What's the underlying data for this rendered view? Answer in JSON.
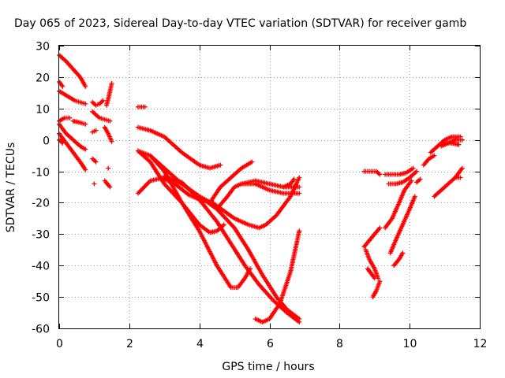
{
  "chart_data": {
    "type": "scatter",
    "title": "Day 065 of 2023, Sidereal Day-to-day VTEC variation (SDTVAR) for receiver gamb",
    "xlabel": "GPS time / hours",
    "ylabel": "SDTVAR / TECUs",
    "xlim": [
      0,
      12
    ],
    "ylim": [
      -60,
      30
    ],
    "xticks": [
      0,
      2,
      4,
      6,
      8,
      10,
      12
    ],
    "yticks": [
      -60,
      -50,
      -40,
      -30,
      -20,
      -10,
      0,
      10,
      20,
      30
    ],
    "grid": true,
    "marker": "+",
    "color": "#ff0000",
    "series": [
      {
        "values": [
          [
            0.0,
            27
          ],
          [
            0.2,
            25
          ],
          [
            0.4,
            22.5
          ],
          [
            0.6,
            20
          ],
          [
            0.75,
            17
          ]
        ]
      },
      {
        "values": [
          [
            0.0,
            18.5
          ],
          [
            0.1,
            17
          ]
        ]
      },
      {
        "values": [
          [
            0.0,
            15.5
          ],
          [
            0.15,
            14.5
          ],
          [
            0.3,
            13.5
          ],
          [
            0.45,
            12.5
          ],
          [
            0.6,
            12
          ],
          [
            0.75,
            11.5
          ]
        ]
      },
      {
        "values": [
          [
            0.0,
            6
          ],
          [
            0.15,
            7
          ],
          [
            0.3,
            7
          ]
        ]
      },
      {
        "values": [
          [
            0.0,
            5
          ],
          [
            0.2,
            2
          ],
          [
            0.4,
            0
          ],
          [
            0.6,
            -2
          ],
          [
            0.75,
            -3
          ]
        ]
      },
      {
        "values": [
          [
            0.0,
            2
          ],
          [
            0.2,
            -1
          ],
          [
            0.4,
            -4
          ],
          [
            0.6,
            -7
          ],
          [
            0.75,
            -9.5
          ]
        ]
      },
      {
        "values": [
          [
            0.4,
            6
          ],
          [
            0.6,
            5.5
          ],
          [
            0.75,
            5
          ]
        ]
      },
      {
        "values": [
          [
            0.0,
            0
          ],
          [
            0.1,
            -1
          ]
        ]
      },
      {
        "values": [
          [
            0.95,
            12
          ],
          [
            1.05,
            11
          ],
          [
            1.15,
            11.5
          ],
          [
            1.25,
            12.5
          ]
        ]
      },
      {
        "values": [
          [
            0.95,
            9
          ],
          [
            1.05,
            8
          ],
          [
            1.15,
            7
          ],
          [
            1.3,
            6.5
          ],
          [
            1.45,
            6
          ]
        ]
      },
      {
        "values": [
          [
            0.95,
            2.5
          ],
          [
            1.05,
            3
          ]
        ]
      },
      {
        "values": [
          [
            1.3,
            4
          ],
          [
            1.4,
            2
          ],
          [
            1.5,
            -0.5
          ]
        ]
      },
      {
        "values": [
          [
            0.95,
            -6
          ],
          [
            1.05,
            -7
          ]
        ]
      },
      {
        "values": [
          [
            1.4,
            -9
          ]
        ]
      },
      {
        "values": [
          [
            1.3,
            -13
          ],
          [
            1.45,
            -15
          ]
        ]
      },
      {
        "values": [
          [
            1.0,
            -14
          ]
        ]
      },
      {
        "values": [
          [
            1.35,
            11
          ],
          [
            1.4,
            13
          ],
          [
            1.45,
            15.5
          ],
          [
            1.5,
            18
          ]
        ]
      },
      {
        "values": [
          [
            2.25,
            10.5
          ],
          [
            2.45,
            10.5
          ]
        ]
      },
      {
        "values": [
          [
            2.25,
            4
          ],
          [
            2.6,
            3
          ],
          [
            3.0,
            1
          ],
          [
            3.5,
            -4
          ],
          [
            4.0,
            -8
          ],
          [
            4.3,
            -9
          ],
          [
            4.6,
            -8
          ]
        ]
      },
      {
        "values": [
          [
            2.25,
            -3.5
          ],
          [
            2.6,
            -5
          ],
          [
            3.0,
            -9
          ],
          [
            3.5,
            -14
          ],
          [
            4.0,
            -18
          ],
          [
            4.5,
            -21
          ],
          [
            5.0,
            -25
          ],
          [
            5.4,
            -27
          ],
          [
            5.7,
            -28
          ],
          [
            5.9,
            -27
          ],
          [
            6.2,
            -24
          ],
          [
            6.6,
            -18
          ],
          [
            6.85,
            -12
          ]
        ]
      },
      {
        "values": [
          [
            2.25,
            -3.5
          ],
          [
            2.6,
            -7
          ],
          [
            3.0,
            -14
          ],
          [
            3.5,
            -20
          ],
          [
            4.0,
            -27
          ],
          [
            4.3,
            -29.5
          ],
          [
            4.5,
            -29
          ],
          [
            4.7,
            -27
          ]
        ]
      },
      {
        "values": [
          [
            2.25,
            -17
          ],
          [
            2.6,
            -13
          ],
          [
            3.0,
            -12
          ],
          [
            3.5,
            -13.5
          ],
          [
            4.0,
            -19
          ],
          [
            4.5,
            -26
          ],
          [
            4.9,
            -33
          ],
          [
            5.3,
            -40
          ],
          [
            5.7,
            -46
          ],
          [
            6.1,
            -51
          ],
          [
            6.5,
            -55
          ],
          [
            6.85,
            -58
          ]
        ]
      },
      {
        "values": [
          [
            2.6,
            -5
          ],
          [
            3.0,
            -10
          ],
          [
            3.5,
            -20
          ],
          [
            4.0,
            -29
          ],
          [
            4.5,
            -40
          ],
          [
            4.9,
            -47
          ],
          [
            5.1,
            -47
          ],
          [
            5.3,
            -44
          ],
          [
            5.45,
            -41
          ]
        ]
      },
      {
        "values": [
          [
            3.0,
            -12.5
          ],
          [
            3.3,
            -14
          ],
          [
            3.7,
            -17.5
          ],
          [
            4.0,
            -19
          ],
          [
            4.4,
            -20
          ]
        ]
      },
      {
        "values": [
          [
            3.0,
            -11.5
          ],
          [
            3.5,
            -14
          ],
          [
            4.0,
            -18
          ],
          [
            4.5,
            -22
          ],
          [
            5.0,
            -28
          ],
          [
            5.4,
            -35
          ],
          [
            5.8,
            -43
          ],
          [
            6.2,
            -50
          ],
          [
            6.5,
            -54
          ],
          [
            6.85,
            -57
          ]
        ]
      },
      {
        "values": [
          [
            4.3,
            -20
          ],
          [
            4.6,
            -15
          ],
          [
            4.9,
            -12
          ],
          [
            5.2,
            -9
          ],
          [
            5.5,
            -7
          ]
        ]
      },
      {
        "values": [
          [
            4.5,
            -22
          ],
          [
            4.8,
            -18
          ],
          [
            5.0,
            -15
          ],
          [
            5.2,
            -14
          ],
          [
            5.6,
            -13
          ],
          [
            6.0,
            -14
          ],
          [
            6.4,
            -15
          ],
          [
            6.85,
            -15
          ]
        ]
      },
      {
        "values": [
          [
            5.2,
            -14
          ],
          [
            5.6,
            -14
          ],
          [
            6.0,
            -16
          ],
          [
            6.4,
            -17
          ],
          [
            6.85,
            -17
          ]
        ]
      },
      {
        "values": [
          [
            5.6,
            -57
          ],
          [
            5.8,
            -58
          ],
          [
            6.0,
            -57
          ],
          [
            6.3,
            -52
          ],
          [
            6.6,
            -42
          ],
          [
            6.85,
            -29
          ]
        ]
      },
      {
        "values": [
          [
            6.4,
            -15
          ],
          [
            6.6,
            -14
          ],
          [
            6.7,
            -12.5
          ]
        ]
      },
      {
        "values": [
          [
            8.7,
            -10
          ],
          [
            8.9,
            -10
          ],
          [
            9.05,
            -10
          ],
          [
            9.15,
            -11
          ]
        ]
      },
      {
        "values": [
          [
            8.7,
            -34
          ],
          [
            8.85,
            -32
          ],
          [
            9.0,
            -30
          ],
          [
            9.15,
            -28
          ]
        ]
      },
      {
        "values": [
          [
            8.75,
            -35
          ],
          [
            8.85,
            -38
          ],
          [
            9.0,
            -41
          ],
          [
            9.1,
            -44
          ]
        ]
      },
      {
        "values": [
          [
            8.8,
            -41
          ],
          [
            8.9,
            -42.5
          ],
          [
            9.0,
            -44
          ]
        ]
      },
      {
        "values": [
          [
            8.95,
            -50
          ],
          [
            9.05,
            -48
          ],
          [
            9.15,
            -45
          ]
        ]
      },
      {
        "values": [
          [
            9.3,
            -11
          ],
          [
            9.5,
            -11
          ],
          [
            9.7,
            -11
          ],
          [
            9.9,
            -10.5
          ],
          [
            10.1,
            -9
          ]
        ]
      },
      {
        "values": [
          [
            9.4,
            -14
          ],
          [
            9.6,
            -14
          ],
          [
            9.8,
            -13.5
          ],
          [
            10.0,
            -12
          ],
          [
            10.2,
            -10
          ]
        ]
      },
      {
        "values": [
          [
            9.3,
            -28
          ],
          [
            9.5,
            -25
          ],
          [
            9.7,
            -20
          ],
          [
            9.85,
            -16
          ],
          [
            10.05,
            -13
          ]
        ]
      },
      {
        "values": [
          [
            9.45,
            -36
          ],
          [
            9.6,
            -32
          ],
          [
            9.8,
            -27
          ],
          [
            10.0,
            -22
          ],
          [
            10.15,
            -18
          ]
        ]
      },
      {
        "values": [
          [
            9.55,
            -40
          ],
          [
            9.7,
            -38
          ],
          [
            9.8,
            -36
          ]
        ]
      },
      {
        "values": [
          [
            10.2,
            -13.5
          ],
          [
            10.3,
            -12.5
          ]
        ]
      },
      {
        "values": [
          [
            10.4,
            -8
          ],
          [
            10.55,
            -6
          ],
          [
            10.7,
            -5
          ]
        ]
      },
      {
        "values": [
          [
            10.6,
            -4
          ],
          [
            10.8,
            -2
          ],
          [
            11.0,
            0
          ],
          [
            11.2,
            1
          ],
          [
            11.45,
            1
          ]
        ]
      },
      {
        "values": [
          [
            10.9,
            -2
          ],
          [
            11.1,
            -1
          ],
          [
            11.3,
            0
          ],
          [
            11.5,
            0
          ]
        ]
      },
      {
        "values": [
          [
            11.0,
            -1
          ],
          [
            11.2,
            -1
          ],
          [
            11.4,
            -1.5
          ]
        ]
      },
      {
        "values": [
          [
            10.7,
            -18
          ],
          [
            10.9,
            -16
          ],
          [
            11.1,
            -14
          ],
          [
            11.3,
            -12
          ],
          [
            11.5,
            -9
          ]
        ]
      },
      {
        "values": [
          [
            11.3,
            -12
          ],
          [
            11.45,
            -12
          ]
        ]
      }
    ]
  }
}
